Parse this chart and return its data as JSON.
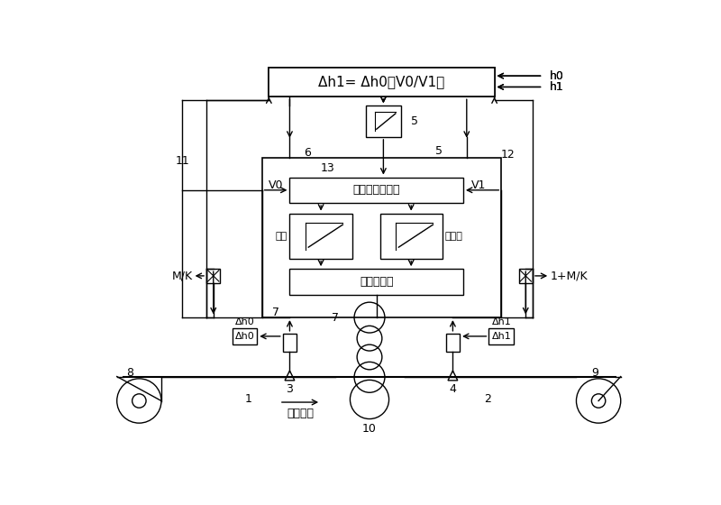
{
  "bg_color": "#ffffff",
  "line_color": "#000000",
  "formula_text": "Δh1= Δh0（V0/V1）",
  "servo_text": "液压压下伺服阀",
  "cylinder_text": "液压压下缸",
  "position_text": "位置",
  "rolling_force_text": "扎制力",
  "rolling_dir_text": "扎制方向",
  "h0_text": "h0",
  "h1_text": "h1",
  "V0_text": "V0",
  "V1_text": "V1",
  "MK_text": "M/K",
  "MK1_text": "1+M/K",
  "dh0_text": "Δh0",
  "dh1_text": "Δh1"
}
